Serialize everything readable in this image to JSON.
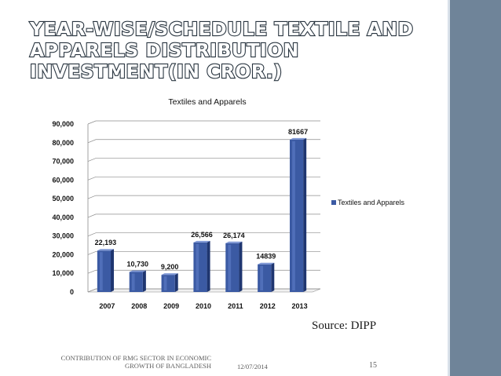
{
  "slide": {
    "title": "YEAR-WISE/SCHEDULE TEXTILE AND APPARELS DISTRIBUTION INVESTMENT(IN CROR.)",
    "source": "Source: DIPP",
    "footer_text": "CONTRIBUTION OF RMG SECTOR IN ECONOMIC GROWTH OF BANGLADESH",
    "footer_date": "12/07/2014",
    "page_number": "15"
  },
  "colors": {
    "bar_face": "#3b5aa3",
    "bar_side": "#1f3670",
    "bar_top": "#7f98d6",
    "grid": "#8c8c8c",
    "stripe": "#6f8499"
  },
  "chart_data": {
    "type": "bar",
    "title": "Textiles and Apparels",
    "categories": [
      "2007",
      "2008",
      "2009",
      "2010",
      "2011",
      "2012",
      "2013"
    ],
    "series": [
      {
        "name": "Textiles and Apparels",
        "values": [
          22193,
          10730,
          9200,
          26566,
          26174,
          14839,
          81667
        ],
        "labels": [
          "22,193",
          "10,730",
          "9,200",
          "26,566",
          "26,174",
          "14839",
          "81667"
        ]
      }
    ],
    "yticks": [
      "0",
      "10,000",
      "20,000",
      "30,000",
      "40,000",
      "50,000",
      "60,000",
      "70,000",
      "80,000",
      "90,000"
    ],
    "ylim": [
      0,
      90000
    ],
    "xlabel": "",
    "ylabel": "",
    "grid": true,
    "legend_position": "right"
  }
}
